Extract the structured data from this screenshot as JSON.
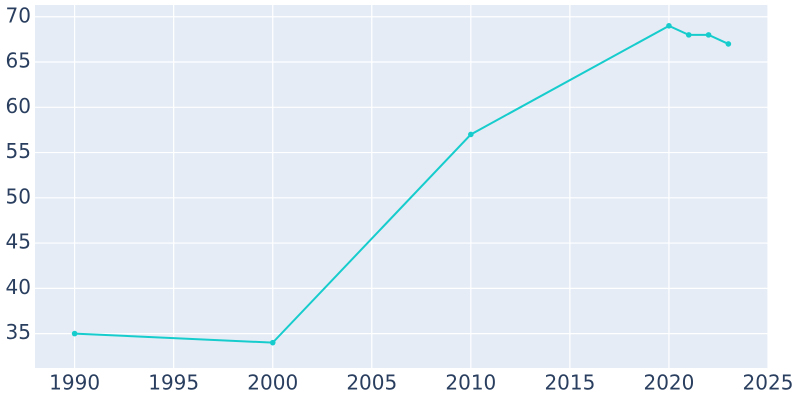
{
  "chart_data": {
    "type": "line",
    "x": [
      1990,
      2000,
      2010,
      2020,
      2021,
      2022,
      2023
    ],
    "series": [
      {
        "color": "#17cccc",
        "values": [
          35,
          34,
          57,
          69,
          68,
          68,
          67
        ]
      }
    ],
    "xlim": [
      1988,
      2025
    ],
    "xticks": [
      1990,
      1995,
      2000,
      2005,
      2010,
      2015,
      2020,
      2025
    ],
    "ylim": [
      31.2,
      71.3
    ],
    "yticks": [
      35,
      40,
      45,
      50,
      55,
      60,
      65,
      70
    ],
    "grid": true
  }
}
